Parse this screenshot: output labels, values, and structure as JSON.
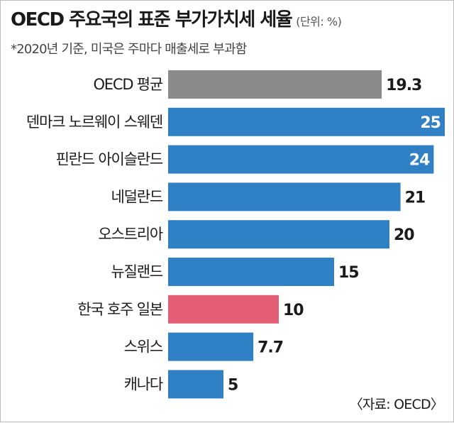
{
  "header": {
    "title": "OECD 주요국의 표준 부가가치세 세율",
    "unit": "(단위: %)",
    "subtitle": "*2020년 기준, 미국은 주마다 매출세로 부과함"
  },
  "source": "〈자료: OECD〉",
  "colors": {
    "bar": "#2f80c4",
    "average": "#8a8a8b",
    "highlight": "#e35d74",
    "label_dark": "#1a1a1a",
    "label_light": "#ffffff"
  },
  "chart_data": {
    "type": "bar",
    "orientation": "horizontal",
    "title": "OECD 주요국의 표준 부가가치세 세율",
    "unit": "%",
    "categories": [
      "OECD 평균",
      "덴마크 노르웨이 스웨덴",
      "핀란드 아이슬란드",
      "네덜란드",
      "오스트리아",
      "뉴질랜드",
      "한국 호주 일본",
      "스위스",
      "캐나다"
    ],
    "values": [
      19.3,
      25,
      24,
      21,
      20,
      15,
      10,
      7.7,
      5
    ],
    "value_labels": [
      "19.3",
      "25",
      "24",
      "21",
      "20",
      "15",
      "10",
      "7.7",
      "5"
    ],
    "bar_roles": [
      "average",
      "bar",
      "bar",
      "bar",
      "bar",
      "bar",
      "highlight",
      "bar",
      "bar"
    ],
    "xlim": [
      0,
      25
    ],
    "grid": false,
    "legend": "none"
  }
}
